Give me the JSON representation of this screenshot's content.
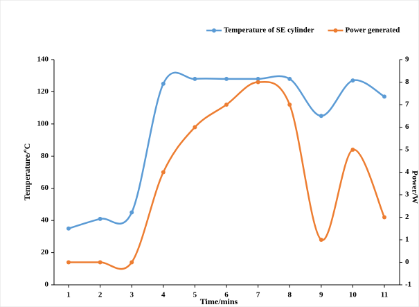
{
  "chart_data": {
    "type": "line",
    "smooth": true,
    "x_label": "Time/mins",
    "y_label": "Temperature/ºC",
    "y2_label": "Power/W",
    "categories": [
      "1",
      "2",
      "3",
      "4",
      "5",
      "6",
      "7",
      "8",
      "9",
      "10",
      "11"
    ],
    "series": [
      {
        "name": "Temperature of SE cylinder",
        "color": "#5b9bd5",
        "values": [
          35,
          41,
          45,
          125,
          128,
          128,
          128,
          128,
          105,
          127,
          117
        ]
      },
      {
        "name": "Power generated",
        "color": "#ed7d31",
        "axis": "y2",
        "values": [
          0,
          0,
          0,
          4,
          6,
          7,
          8,
          7,
          1,
          5,
          2
        ]
      }
    ],
    "ylim": [
      0,
      140
    ],
    "yticks": [
      0,
      20,
      40,
      60,
      80,
      100,
      120,
      140
    ],
    "y2lim": [
      -1,
      9
    ],
    "y2ticks": [
      -1,
      0,
      1,
      2,
      3,
      4,
      5,
      6,
      7,
      8,
      9
    ],
    "legend": "top-right",
    "grid": false
  }
}
